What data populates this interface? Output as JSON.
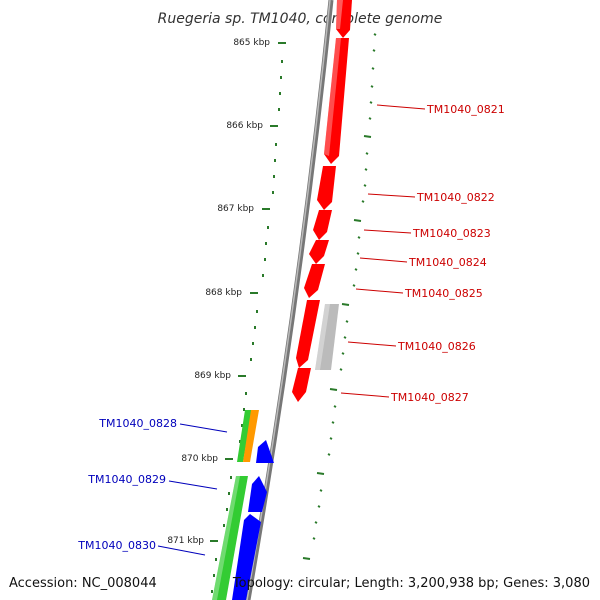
{
  "title": "Ruegeria sp. TM1040, complete genome",
  "footer": {
    "accession": "Accession: NC_008044",
    "topology": "Topology: circular; Length: 3,200,938 bp; Genes: 3,080"
  },
  "kbp_ticks": [
    "865 kbp",
    "866 kbp",
    "867 kbp",
    "868 kbp",
    "869 kbp",
    "870 kbp",
    "871 kbp"
  ],
  "genes_right": [
    "TM1040_0821",
    "TM1040_0822",
    "TM1040_0823",
    "TM1040_0824",
    "TM1040_0825",
    "TM1040_0826",
    "TM1040_0827"
  ],
  "genes_left": [
    "TM1040_0828",
    "TM1040_0829",
    "TM1040_0830"
  ],
  "colors": {
    "forward_gene": "#ff0000",
    "reverse_gene": "#0000ff",
    "rna_gene": "#33cc33",
    "pseudo_gene": "#bbbbbb",
    "misc_feature": "#ff9900",
    "backbone": "#888888",
    "ticks": "#2a7a2a",
    "label_right": "#cc0000",
    "label_left": "#0000bb"
  }
}
